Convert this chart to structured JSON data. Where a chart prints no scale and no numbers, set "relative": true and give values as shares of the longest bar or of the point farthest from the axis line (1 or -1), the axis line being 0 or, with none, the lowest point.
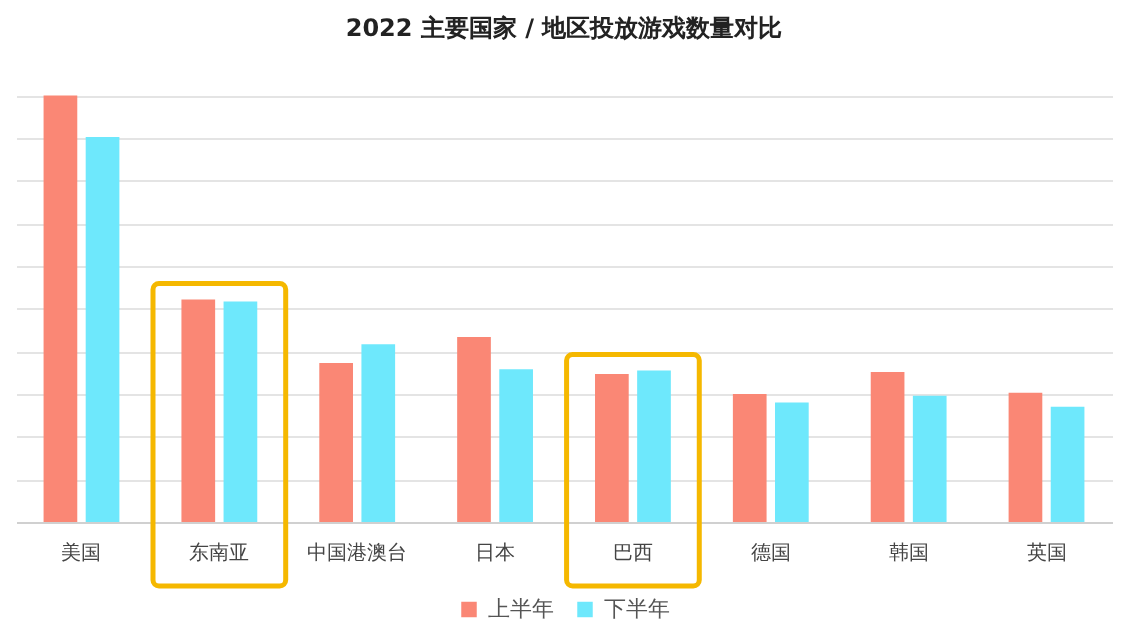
{
  "chart_data": {
    "type": "bar",
    "title": "2022 主要国家 / 地区投放游戏数量对比",
    "relative": true,
    "grid": "y",
    "legend": "bottom",
    "categories": [
      "美国",
      "东南亚",
      "中国港澳台",
      "日本",
      "巴西",
      "德国",
      "韩国",
      "英国"
    ],
    "series": [
      {
        "name": "上半年",
        "color": "#fa8775",
        "values": [
          1,
          0.522,
          0.373,
          0.434,
          0.347,
          0.3,
          0.352,
          0.303
        ]
      },
      {
        "name": "下半年",
        "color": "#6ee8fc",
        "values": [
          0.903,
          0.517,
          0.417,
          0.358,
          0.355,
          0.28,
          0.296,
          0.27
        ]
      }
    ]
  }
}
